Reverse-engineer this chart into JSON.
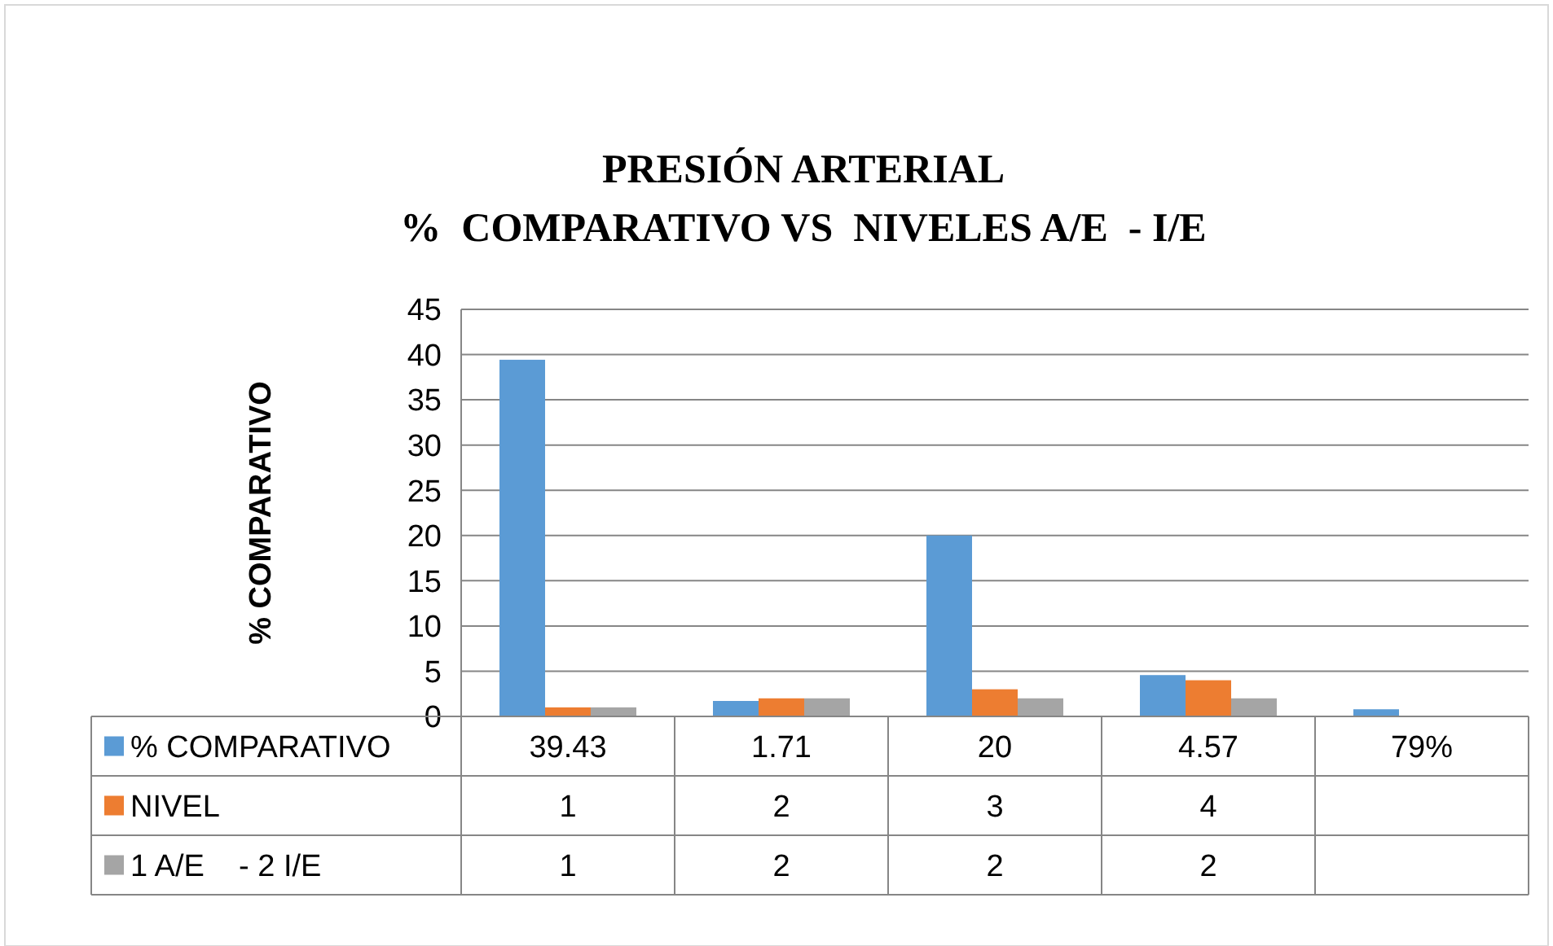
{
  "chart_data": {
    "type": "bar",
    "title": "PRESIÓN ARTERIAL\n%  COMPARATIVO VS  NIVELES A/E  - I/E",
    "ylabel": "% COMPARATIVO",
    "categories": [
      null,
      null,
      null,
      null,
      null
    ],
    "series": [
      {
        "name": "% COMPARATIVO",
        "color": "#5b9bd5",
        "values": [
          39.43,
          1.71,
          20,
          4.57,
          0.79
        ],
        "value_labels": [
          "39.43",
          "1.71",
          "20",
          "4.57",
          "79%"
        ]
      },
      {
        "name": "NIVEL",
        "color": "#ed7d31",
        "values": [
          1,
          2,
          3,
          4,
          null
        ],
        "value_labels": [
          "1",
          "2",
          "3",
          "4",
          null
        ]
      },
      {
        "name": "1 A/E    - 2 I/E",
        "color": "#a5a5a5",
        "values": [
          1,
          2,
          2,
          2,
          null
        ],
        "value_labels": [
          "1",
          "2",
          "2",
          "2",
          null
        ]
      }
    ],
    "ylim": [
      0,
      45
    ],
    "yticks": [
      0,
      5,
      10,
      15,
      20,
      25,
      30,
      35,
      40,
      45
    ],
    "grid": "y",
    "legend": "bottom"
  }
}
